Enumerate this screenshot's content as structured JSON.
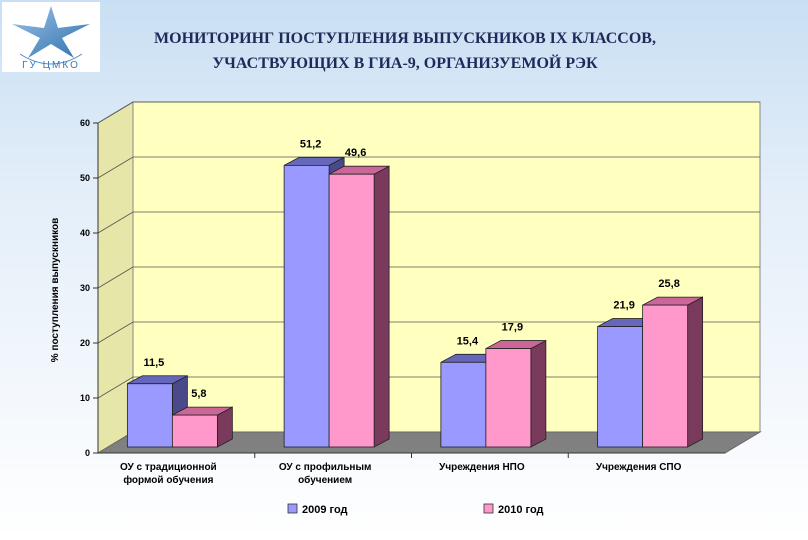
{
  "header": {
    "title_line1": "МОНИТОРИНГ ПОСТУПЛЕНИЯ ВЫПУСКНИКОВ IX КЛАССОВ,",
    "title_line2": "УЧАСТВУЮЩИХ В ГИА-9, ОРГАНИЗУЕМОЙ РЭК",
    "logo_text": "ГУ ЦМКО"
  },
  "chart_data": {
    "type": "bar",
    "categories": [
      [
        "ОУ с традиционной",
        "формой обучения"
      ],
      [
        "ОУ с профильным",
        "обучением"
      ],
      [
        "Учреждения НПО"
      ],
      [
        "Учреждения СПО"
      ]
    ],
    "series": [
      {
        "name": "2009 год",
        "values": [
          11.5,
          51.2,
          15.4,
          21.9
        ],
        "labels": [
          "11,5",
          "51,2",
          "15,4",
          "21,9"
        ]
      },
      {
        "name": "2010 год",
        "values": [
          5.8,
          49.6,
          17.9,
          25.8
        ],
        "labels": [
          "5,8",
          "49,6",
          "17,9",
          "25,8"
        ]
      }
    ],
    "ylabel": "% поступления выпускников",
    "ylim": [
      0,
      60
    ],
    "yticks": [
      "0",
      "10",
      "20",
      "30",
      "40",
      "50",
      "60"
    ],
    "grid": true,
    "legend_position": "bottom",
    "colors": {
      "series_2009_front": "#9999ff",
      "series_2009_top": "#6666bb",
      "series_2009_side": "#4a4a8a",
      "series_2010_front": "#ff99cc",
      "series_2010_top": "#cc6699",
      "series_2010_side": "#7a3a5c",
      "wall": "#ffffc0",
      "floor": "#808080"
    }
  }
}
